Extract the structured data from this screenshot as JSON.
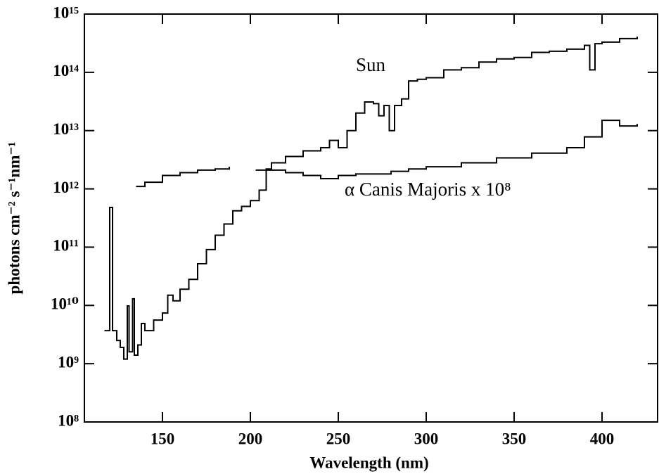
{
  "chart_data": {
    "type": "line",
    "step": true,
    "xlabel": "Wavelength (nm)",
    "ylabel": "photons cm⁻² s⁻¹nm⁻¹",
    "ylog": true,
    "xlim": [
      105.6,
      431.6
    ],
    "xticks": [
      150,
      200,
      250,
      300,
      350,
      400
    ],
    "ylim": [
      100000000.0,
      1000000000000000.0
    ],
    "yticks": [
      {
        "value": 100000000.0,
        "label": "10⁸"
      },
      {
        "value": 1000000000.0,
        "label": "10⁹"
      },
      {
        "value": 10000000000.0,
        "label": "10¹⁰"
      },
      {
        "value": 100000000000.0,
        "label": "10¹¹"
      },
      {
        "value": 1000000000000.0,
        "label": "10¹²"
      },
      {
        "value": 10000000000000.0,
        "label": "10¹³"
      },
      {
        "value": 100000000000000.0,
        "label": "10¹⁴"
      },
      {
        "value": 1000000000000000.0,
        "label": "10¹⁵"
      }
    ],
    "series": [
      {
        "name": "Sun",
        "color": "#000000",
        "x": [
          117,
          120,
          121.6,
          124,
          126,
          128,
          130,
          131,
          133,
          134,
          136,
          138,
          140,
          145,
          150,
          153,
          156,
          160,
          165,
          170,
          175,
          180,
          185,
          190,
          195,
          200,
          205,
          209,
          212,
          220,
          230,
          240,
          245,
          250,
          255,
          260,
          265,
          270,
          273,
          276,
          279,
          282,
          286,
          290,
          295,
          300,
          310,
          320,
          330,
          340,
          350,
          360,
          370,
          380,
          390,
          393,
          396,
          400,
          410,
          420
        ],
        "values": [
          3700000000.0,
          480000000000.0,
          3700000000.0,
          2500000000.0,
          1900000000.0,
          1200000000.0,
          9800000000.0,
          1600000000.0,
          13000000000.0,
          1400000000.0,
          2100000000.0,
          4900000000.0,
          3700000000.0,
          5600000000.0,
          7400000000.0,
          15000000000.0,
          12000000000.0,
          19000000000.0,
          28000000000.0,
          52000000000.0,
          91000000000.0,
          160000000000.0,
          250000000000.0,
          420000000000.0,
          500000000000.0,
          630000000000.0,
          950000000000.0,
          2200000000000.0,
          2800000000000.0,
          3600000000000.0,
          4500000000000.0,
          5100000000000.0,
          6800000000000.0,
          5100000000000.0,
          10000000000000.0,
          20000000000000.0,
          31000000000000.0,
          29000000000000.0,
          18000000000000.0,
          27000000000000.0,
          10000000000000.0,
          27000000000000.0,
          35000000000000.0,
          71000000000000.0,
          76000000000000.0,
          81000000000000.0,
          110000000000000.0,
          120000000000000.0,
          150000000000000.0,
          170000000000000.0,
          180000000000000.0,
          220000000000000.0,
          230000000000000.0,
          250000000000000.0,
          290000000000000.0,
          110000000000000.0,
          310000000000000.0,
          330000000000000.0,
          380000000000000.0,
          410000000000000.0
        ]
      },
      {
        "name": "α Canis Majoris x 10⁸",
        "color": "#000000",
        "x": [
          135,
          140,
          150,
          160,
          170,
          180,
          188,
          195,
          203,
          210,
          220,
          230,
          240,
          250,
          260,
          270,
          280,
          290,
          300,
          320,
          340,
          360,
          380,
          390,
          400,
          410,
          420
        ],
        "values": [
          1100000000000.0,
          1300000000000.0,
          1700000000000.0,
          1900000000000.0,
          2100000000000.0,
          2200000000000.0,
          2400000000000.0,
          null,
          2100000000000.0,
          2100000000000.0,
          1900000000000.0,
          1700000000000.0,
          1500000000000.0,
          1700000000000.0,
          1800000000000.0,
          1800000000000.0,
          2000000000000.0,
          2200000000000.0,
          2400000000000.0,
          2800000000000.0,
          3400000000000.0,
          4100000000000.0,
          5100000000000.0,
          7800000000000.0,
          15000000000000.0,
          12000000000000.0,
          13000000000000.0
        ]
      }
    ]
  }
}
